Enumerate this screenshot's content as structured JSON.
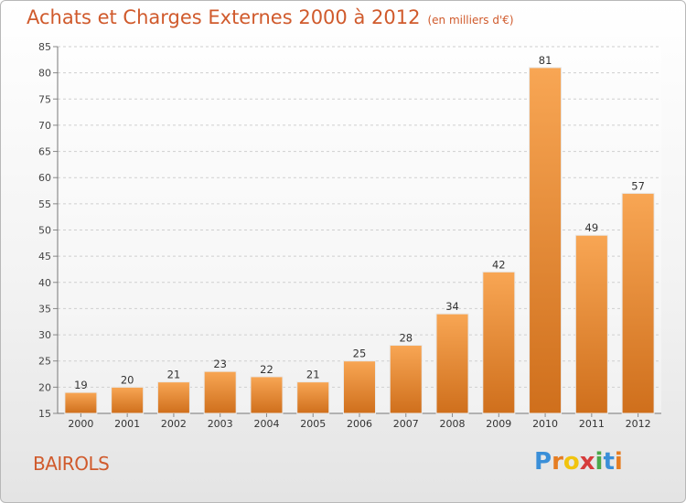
{
  "header": {
    "title": "Achats et Charges Externes 2000 à 2012",
    "unit": "(en milliers d'€)"
  },
  "place": "BAIROLS",
  "logo": {
    "text": "Proxiti",
    "letters": [
      "P",
      "r",
      "o",
      "x",
      "i",
      "t",
      "i"
    ],
    "colors": [
      "#3a8fd8",
      "#e67d22",
      "#f1c40f",
      "#d63c3c",
      "#4aa84a",
      "#3a8fd8",
      "#e67d22"
    ]
  },
  "chart_data": {
    "type": "bar",
    "title": "Achats et Charges Externes 2000 à 2012",
    "xlabel": "",
    "ylabel": "",
    "categories": [
      "2000",
      "2001",
      "2002",
      "2003",
      "2004",
      "2005",
      "2006",
      "2007",
      "2008",
      "2009",
      "2010",
      "2011",
      "2012"
    ],
    "values": [
      19,
      20,
      21,
      23,
      22,
      21,
      25,
      28,
      34,
      42,
      81,
      49,
      57
    ],
    "ylim": [
      15,
      85
    ],
    "yticks": [
      15,
      20,
      25,
      30,
      35,
      40,
      45,
      50,
      55,
      60,
      65,
      70,
      75,
      80,
      85
    ],
    "grid": true,
    "legend": "none",
    "bar_color_top": "#f8a654",
    "bar_color_bottom": "#cf6f1c"
  }
}
